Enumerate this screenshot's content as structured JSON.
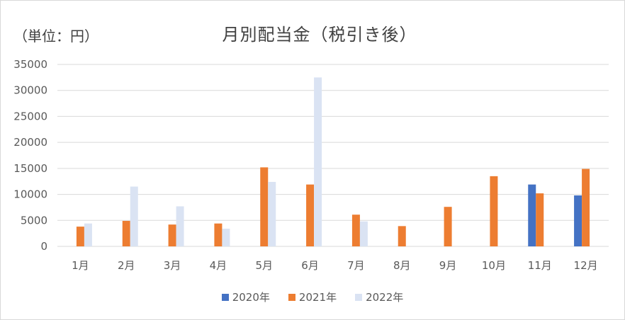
{
  "chart_data": {
    "type": "bar",
    "title": "月別配当金（税引き後）",
    "unit_label": "（単位：円）",
    "categories": [
      "1月",
      "2月",
      "3月",
      "4月",
      "5月",
      "6月",
      "7月",
      "8月",
      "9月",
      "10月",
      "11月",
      "12月"
    ],
    "ylim": [
      0,
      35000
    ],
    "yticks": [
      "0",
      "5000",
      "10000",
      "15000",
      "20000",
      "25000",
      "30000",
      "35000"
    ],
    "grid": true,
    "legend_position": "bottom",
    "series": [
      {
        "name": "2020年",
        "color": "#4472c4",
        "values": [
          0,
          0,
          0,
          0,
          0,
          0,
          0,
          0,
          0,
          0,
          11900,
          9800
        ]
      },
      {
        "name": "2021年",
        "color": "#ed7d31",
        "values": [
          3800,
          4900,
          4200,
          4400,
          15200,
          11900,
          6100,
          3900,
          7600,
          13500,
          10200,
          14900
        ]
      },
      {
        "name": "2022年",
        "color": "#dae3f3",
        "values": [
          4400,
          11500,
          7700,
          3400,
          12400,
          32500,
          4800,
          0,
          0,
          0,
          0,
          0
        ]
      }
    ]
  }
}
